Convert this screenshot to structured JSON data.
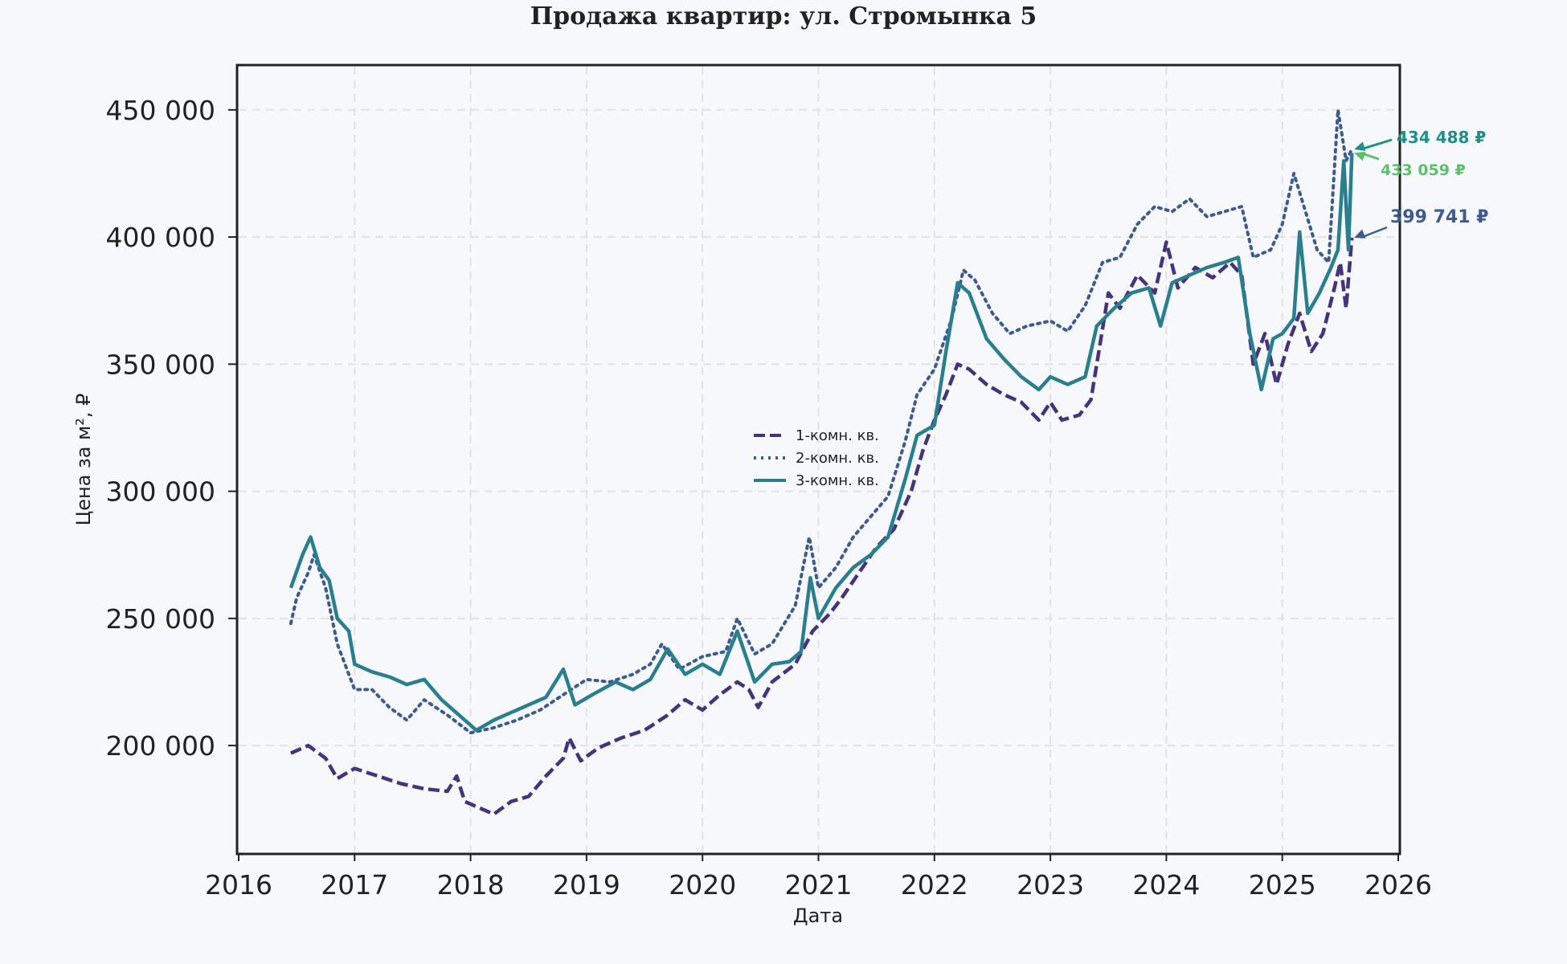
{
  "chart_data": {
    "type": "line",
    "title": "Продажа квартир: ул. Стромынка 5",
    "xlabel": "Дата",
    "ylabel": "Цена за м², ₽",
    "xlim": [
      2016,
      2026
    ],
    "ylim": [
      158000,
      467000
    ],
    "x_ticks": [
      2016,
      2017,
      2018,
      2019,
      2020,
      2021,
      2022,
      2023,
      2024,
      2025,
      2026
    ],
    "x_tick_labels": [
      "2016",
      "2017",
      "2018",
      "2019",
      "2020",
      "2021",
      "2022",
      "2023",
      "2024",
      "2025",
      "2026"
    ],
    "y_ticks": [
      200000,
      250000,
      300000,
      350000,
      400000,
      450000
    ],
    "y_tick_labels": [
      "200 000",
      "250 000",
      "300 000",
      "350 000",
      "400 000",
      "450 000"
    ],
    "grid": true,
    "legend_position": "center",
    "series": [
      {
        "name": "1-комн. кв.",
        "color": "#46337e",
        "style": "dashed",
        "points": [
          [
            2016.45,
            197000
          ],
          [
            2016.6,
            200000
          ],
          [
            2016.75,
            195000
          ],
          [
            2016.85,
            187000
          ],
          [
            2017.0,
            191000
          ],
          [
            2017.2,
            188000
          ],
          [
            2017.4,
            185000
          ],
          [
            2017.6,
            183000
          ],
          [
            2017.8,
            182000
          ],
          [
            2017.88,
            188000
          ],
          [
            2017.95,
            178000
          ],
          [
            2018.1,
            175000
          ],
          [
            2018.2,
            173000
          ],
          [
            2018.35,
            178000
          ],
          [
            2018.5,
            180000
          ],
          [
            2018.65,
            188000
          ],
          [
            2018.8,
            195000
          ],
          [
            2018.85,
            203000
          ],
          [
            2018.95,
            194000
          ],
          [
            2019.1,
            199000
          ],
          [
            2019.3,
            203000
          ],
          [
            2019.5,
            206000
          ],
          [
            2019.7,
            212000
          ],
          [
            2019.85,
            218000
          ],
          [
            2020.0,
            214000
          ],
          [
            2020.15,
            220000
          ],
          [
            2020.3,
            225000
          ],
          [
            2020.4,
            222000
          ],
          [
            2020.48,
            215000
          ],
          [
            2020.6,
            225000
          ],
          [
            2020.8,
            232000
          ],
          [
            2020.95,
            245000
          ],
          [
            2021.1,
            252000
          ],
          [
            2021.2,
            258000
          ],
          [
            2021.35,
            268000
          ],
          [
            2021.5,
            278000
          ],
          [
            2021.65,
            285000
          ],
          [
            2021.8,
            300000
          ],
          [
            2021.9,
            316000
          ],
          [
            2022.0,
            328000
          ],
          [
            2022.1,
            338000
          ],
          [
            2022.2,
            350000
          ],
          [
            2022.3,
            348000
          ],
          [
            2022.45,
            342000
          ],
          [
            2022.6,
            338000
          ],
          [
            2022.75,
            335000
          ],
          [
            2022.9,
            328000
          ],
          [
            2023.0,
            335000
          ],
          [
            2023.1,
            328000
          ],
          [
            2023.25,
            330000
          ],
          [
            2023.35,
            336000
          ],
          [
            2023.5,
            378000
          ],
          [
            2023.6,
            372000
          ],
          [
            2023.75,
            385000
          ],
          [
            2023.9,
            378000
          ],
          [
            2024.0,
            398000
          ],
          [
            2024.1,
            380000
          ],
          [
            2024.25,
            388000
          ],
          [
            2024.4,
            384000
          ],
          [
            2024.55,
            390000
          ],
          [
            2024.65,
            385000
          ],
          [
            2024.75,
            350000
          ],
          [
            2024.85,
            362000
          ],
          [
            2024.95,
            342000
          ],
          [
            2025.05,
            358000
          ],
          [
            2025.15,
            370000
          ],
          [
            2025.25,
            355000
          ],
          [
            2025.35,
            362000
          ],
          [
            2025.45,
            380000
          ],
          [
            2025.5,
            390000
          ],
          [
            2025.55,
            372000
          ],
          [
            2025.6,
            399741
          ]
        ]
      },
      {
        "name": "2-комн. кв.",
        "color": "#3e5b8f",
        "style": "dotted",
        "points": [
          [
            2016.45,
            248000
          ],
          [
            2016.5,
            258000
          ],
          [
            2016.6,
            268000
          ],
          [
            2016.65,
            275000
          ],
          [
            2016.75,
            262000
          ],
          [
            2016.85,
            240000
          ],
          [
            2016.95,
            228000
          ],
          [
            2017.0,
            222000
          ],
          [
            2017.15,
            222000
          ],
          [
            2017.3,
            215000
          ],
          [
            2017.45,
            210000
          ],
          [
            2017.6,
            218000
          ],
          [
            2017.8,
            212000
          ],
          [
            2018.0,
            205000
          ],
          [
            2018.2,
            207000
          ],
          [
            2018.4,
            210000
          ],
          [
            2018.6,
            214000
          ],
          [
            2018.8,
            220000
          ],
          [
            2019.0,
            226000
          ],
          [
            2019.2,
            225000
          ],
          [
            2019.4,
            228000
          ],
          [
            2019.55,
            232000
          ],
          [
            2019.65,
            240000
          ],
          [
            2019.8,
            230000
          ],
          [
            2020.0,
            235000
          ],
          [
            2020.2,
            237000
          ],
          [
            2020.3,
            250000
          ],
          [
            2020.45,
            236000
          ],
          [
            2020.6,
            240000
          ],
          [
            2020.8,
            255000
          ],
          [
            2020.92,
            282000
          ],
          [
            2021.0,
            262000
          ],
          [
            2021.15,
            270000
          ],
          [
            2021.3,
            282000
          ],
          [
            2021.45,
            290000
          ],
          [
            2021.6,
            298000
          ],
          [
            2021.75,
            320000
          ],
          [
            2021.85,
            338000
          ],
          [
            2022.0,
            348000
          ],
          [
            2022.15,
            368000
          ],
          [
            2022.25,
            387000
          ],
          [
            2022.35,
            383000
          ],
          [
            2022.5,
            370000
          ],
          [
            2022.65,
            362000
          ],
          [
            2022.8,
            365000
          ],
          [
            2023.0,
            367000
          ],
          [
            2023.15,
            363000
          ],
          [
            2023.3,
            373000
          ],
          [
            2023.45,
            390000
          ],
          [
            2023.6,
            392000
          ],
          [
            2023.75,
            405000
          ],
          [
            2023.9,
            412000
          ],
          [
            2024.05,
            410000
          ],
          [
            2024.2,
            415000
          ],
          [
            2024.35,
            408000
          ],
          [
            2024.5,
            410000
          ],
          [
            2024.65,
            412000
          ],
          [
            2024.75,
            392000
          ],
          [
            2024.9,
            395000
          ],
          [
            2025.0,
            405000
          ],
          [
            2025.1,
            425000
          ],
          [
            2025.2,
            410000
          ],
          [
            2025.3,
            395000
          ],
          [
            2025.4,
            390000
          ],
          [
            2025.48,
            450000
          ],
          [
            2025.55,
            430000
          ],
          [
            2025.6,
            434488
          ]
        ]
      },
      {
        "name": "3-комн. кв.",
        "color": "#2a7f8e",
        "style": "solid",
        "points": [
          [
            2016.45,
            262000
          ],
          [
            2016.55,
            275000
          ],
          [
            2016.62,
            282000
          ],
          [
            2016.7,
            270000
          ],
          [
            2016.78,
            265000
          ],
          [
            2016.85,
            250000
          ],
          [
            2016.95,
            245000
          ],
          [
            2017.0,
            232000
          ],
          [
            2017.15,
            229000
          ],
          [
            2017.3,
            227000
          ],
          [
            2017.45,
            224000
          ],
          [
            2017.6,
            226000
          ],
          [
            2017.75,
            218000
          ],
          [
            2017.9,
            212000
          ],
          [
            2018.05,
            206000
          ],
          [
            2018.2,
            210000
          ],
          [
            2018.35,
            213000
          ],
          [
            2018.5,
            216000
          ],
          [
            2018.65,
            219000
          ],
          [
            2018.8,
            230000
          ],
          [
            2018.9,
            216000
          ],
          [
            2019.05,
            220000
          ],
          [
            2019.25,
            225000
          ],
          [
            2019.4,
            222000
          ],
          [
            2019.55,
            226000
          ],
          [
            2019.7,
            238000
          ],
          [
            2019.85,
            228000
          ],
          [
            2020.0,
            232000
          ],
          [
            2020.15,
            228000
          ],
          [
            2020.3,
            245000
          ],
          [
            2020.45,
            225000
          ],
          [
            2020.6,
            232000
          ],
          [
            2020.75,
            233000
          ],
          [
            2020.85,
            237000
          ],
          [
            2020.93,
            266000
          ],
          [
            2021.0,
            250000
          ],
          [
            2021.15,
            262000
          ],
          [
            2021.3,
            270000
          ],
          [
            2021.45,
            275000
          ],
          [
            2021.6,
            282000
          ],
          [
            2021.75,
            305000
          ],
          [
            2021.85,
            322000
          ],
          [
            2022.0,
            326000
          ],
          [
            2022.1,
            355000
          ],
          [
            2022.2,
            382000
          ],
          [
            2022.3,
            378000
          ],
          [
            2022.45,
            360000
          ],
          [
            2022.6,
            352000
          ],
          [
            2022.75,
            345000
          ],
          [
            2022.9,
            340000
          ],
          [
            2023.0,
            345000
          ],
          [
            2023.15,
            342000
          ],
          [
            2023.3,
            345000
          ],
          [
            2023.4,
            365000
          ],
          [
            2023.55,
            372000
          ],
          [
            2023.7,
            378000
          ],
          [
            2023.85,
            380000
          ],
          [
            2023.95,
            365000
          ],
          [
            2024.05,
            382000
          ],
          [
            2024.2,
            385000
          ],
          [
            2024.35,
            388000
          ],
          [
            2024.5,
            390000
          ],
          [
            2024.62,
            392000
          ],
          [
            2024.72,
            362000
          ],
          [
            2024.82,
            340000
          ],
          [
            2024.92,
            360000
          ],
          [
            2025.0,
            362000
          ],
          [
            2025.1,
            368000
          ],
          [
            2025.15,
            402000
          ],
          [
            2025.22,
            370000
          ],
          [
            2025.32,
            378000
          ],
          [
            2025.42,
            388000
          ],
          [
            2025.48,
            395000
          ],
          [
            2025.53,
            430000
          ],
          [
            2025.57,
            395000
          ],
          [
            2025.6,
            433059
          ]
        ]
      }
    ],
    "annotations": [
      {
        "text": "434 488 ₽",
        "color": "#1f8f8a",
        "target": [
          2025.62,
          434488
        ]
      },
      {
        "text": "433 059 ₽",
        "color": "#5bc06a",
        "target": [
          2025.62,
          433059
        ]
      },
      {
        "text": "399 741 ₽",
        "color": "#3e5b8f",
        "target": [
          2025.62,
          399741
        ]
      }
    ]
  }
}
